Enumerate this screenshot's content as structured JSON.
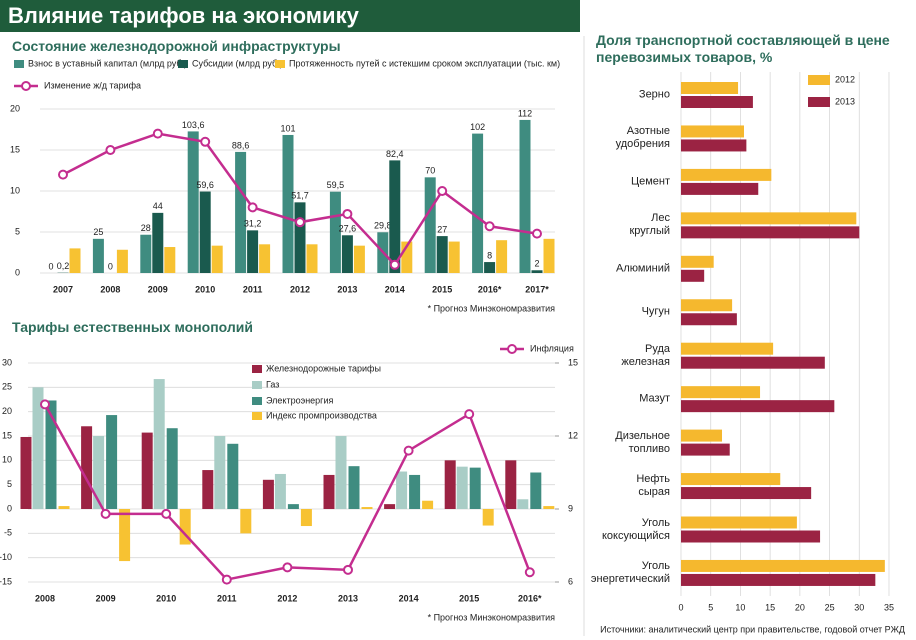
{
  "header": {
    "title": "Влияние тарифов на экономику"
  },
  "chart_data": [
    {
      "type": "bar",
      "title": "Состояние железнодорожной инфраструктуры",
      "categories": [
        "2007",
        "2008",
        "2009",
        "2010",
        "2011",
        "2012",
        "2013",
        "2014",
        "2015",
        "2016*",
        "2017*"
      ],
      "ylim": [
        0,
        20
      ],
      "yticks": [
        0,
        5,
        10,
        15,
        20
      ],
      "y2lim": [
        0,
        120
      ],
      "grid": true,
      "series": [
        {
          "name": "Взнос в уставный капитал (млрд руб.)",
          "color": "#3f8c80",
          "axis": "y2",
          "values": [
            0,
            25,
            28,
            103.6,
            88.6,
            101,
            59.5,
            29.8,
            70,
            102,
            112
          ],
          "value_labels": [
            "0",
            "25",
            "28",
            "103,6",
            "88,6",
            "101",
            "59,5",
            "29,8",
            "70",
            "102",
            "112"
          ]
        },
        {
          "name": "Субсидии (млрд руб.)",
          "color": "#1a5a4e",
          "axis": "y2",
          "values": [
            0.2,
            0,
            44,
            59.6,
            31.2,
            51.7,
            27.6,
            82.4,
            27,
            8,
            2
          ],
          "value_labels": [
            "0,2",
            "0",
            "44",
            "59,6",
            "31,2",
            "51,7",
            "27,6",
            "82,4",
            "27",
            "8",
            "2"
          ]
        },
        {
          "name": "Протяженность путей с истекшим сроком эксплуатации (тыс. км)",
          "color": "#f7c232",
          "axis": "y2",
          "values": [
            18,
            17,
            19,
            20,
            21,
            21,
            20,
            23,
            23,
            24,
            25
          ]
        },
        {
          "name": "Изменение ж/д тарифа",
          "color": "#c42d8f",
          "type": "line",
          "values": [
            12,
            15,
            17,
            16,
            8,
            6.2,
            7.2,
            1,
            10,
            5.7,
            4.8
          ]
        }
      ],
      "note": "* Прогноз Минэкономразвития"
    },
    {
      "type": "bar",
      "title": "Тарифы  естественных монополий",
      "categories": [
        "2008",
        "2009",
        "2010",
        "2011",
        "2012",
        "2013",
        "2014",
        "2015",
        "2016*"
      ],
      "ylim": [
        -15,
        30
      ],
      "yticks": [
        -15,
        -10,
        -5,
        0,
        5,
        10,
        15,
        20,
        25,
        30
      ],
      "y2lim": [
        6,
        15
      ],
      "y2ticks": [
        6,
        9,
        12,
        15
      ],
      "grid": true,
      "series": [
        {
          "name": "Железнодорожные тарифы",
          "color": "#9b2343",
          "values": [
            14.8,
            17,
            15.7,
            8,
            6,
            7,
            1,
            10,
            10
          ]
        },
        {
          "name": "Газ",
          "color": "#a9cdc6",
          "values": [
            25,
            15,
            26.7,
            15,
            7.2,
            15,
            7.7,
            8.7,
            2
          ]
        },
        {
          "name": "Электроэнергия",
          "color": "#3f8c80",
          "values": [
            22.3,
            19.3,
            16.6,
            13.4,
            1,
            8.8,
            7,
            8.5,
            7.5
          ]
        },
        {
          "name": "Индекс промпроизводства",
          "color": "#f7c232",
          "values": [
            0.6,
            -10.7,
            -7.3,
            -5,
            -3.5,
            0.4,
            1.7,
            -3.4,
            0.6
          ]
        },
        {
          "name": "Инфляция",
          "color": "#c42d8f",
          "type": "line",
          "axis": "y2",
          "values": [
            13.3,
            8.8,
            8.8,
            6.1,
            6.6,
            6.5,
            11.4,
            12.9,
            6.4
          ]
        }
      ],
      "note": "* Прогноз Минэкономразвития"
    },
    {
      "type": "barh",
      "title": "Доля транспортной составляющей в цене\nперевозимых товаров, %",
      "categories": [
        "Зерно",
        "Азотные\nудобрения",
        "Цемент",
        "Лес\nкруглый",
        "Алюминий",
        "Чугун",
        "Руда\nжелезная",
        "Мазут",
        "Дизельное\nтопливо",
        "Нефть\nсырая",
        "Уголь\nкоксующийся",
        "Уголь\nэнергетический"
      ],
      "xlim": [
        0,
        35
      ],
      "xticks": [
        0,
        5,
        10,
        15,
        20,
        25,
        30,
        35
      ],
      "grid": true,
      "series": [
        {
          "name": "2012",
          "color": "#f5b82e",
          "values": [
            9.6,
            10.6,
            15.2,
            29.5,
            5.5,
            8.6,
            15.5,
            13.3,
            6.9,
            16.7,
            19.5,
            34.3
          ]
        },
        {
          "name": "2013",
          "color": "#9b2343",
          "values": [
            12.1,
            11,
            13,
            30,
            3.9,
            9.4,
            24.2,
            25.8,
            8.2,
            21.9,
            23.4,
            32.7
          ]
        }
      ],
      "note": "Источники: аналитический центр при правительстве, годовой отчет РЖД"
    }
  ]
}
